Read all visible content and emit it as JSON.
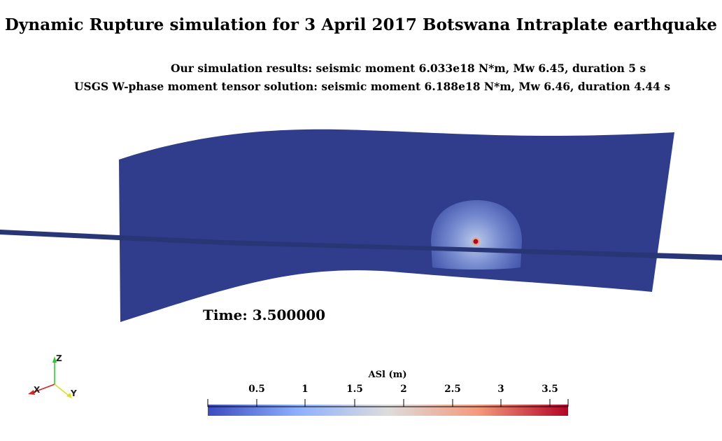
{
  "title": "Dynamic Rupture simulation for 3 April 2017 Botswana Intraplate earthquake",
  "results_line": "Our simulation results: seismic moment 6.033e18 N*m, Mw 6.45, duration 5 s",
  "usgs_line": "USGS W-phase moment tensor solution: seismic moment 6.188e18 N*m, Mw 6.46, duration 4.44 s",
  "time_label": "Time:",
  "time_value": "3.500000",
  "colorbar": {
    "title": "ASl (m)",
    "ticks": [
      "0.5",
      "1",
      "1.5",
      "2",
      "2.5",
      "3",
      "3.5"
    ],
    "colors": [
      "#3b4cc0",
      "#8db0fe",
      "#dddcdc",
      "#f49a7b",
      "#b40426"
    ]
  },
  "axes": {
    "x": "X",
    "y": "Y",
    "z": "Z"
  },
  "colors": {
    "fault": "#2f3d8c",
    "horizon": "#283675",
    "hypocenter": "#b40426"
  }
}
